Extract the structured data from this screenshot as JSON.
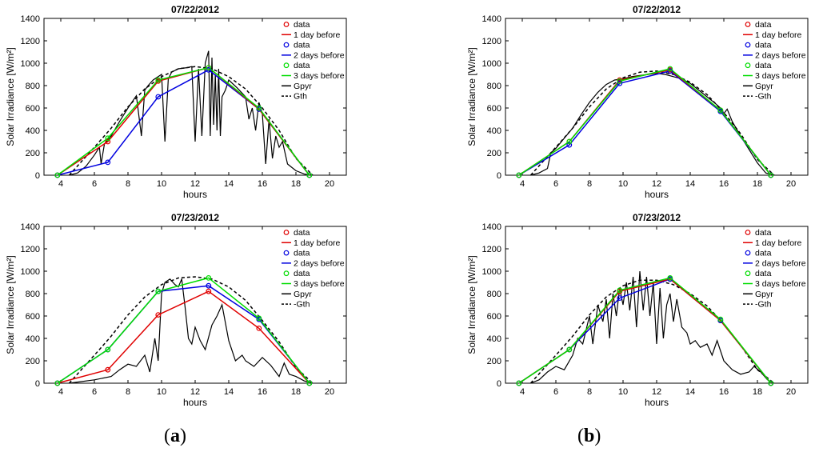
{
  "figure": {
    "label_a": "a",
    "label_b": "b"
  },
  "legend_colors": {
    "1 day before": "#e00000",
    "2 days before": "#0000e0",
    "3 days before": "#00dd00",
    "Gpyr": "#000000",
    "Gth": "#000000"
  },
  "chart_data": [
    {
      "panel": "a-top",
      "type": "line",
      "title": "07/22/2012",
      "xlabel": "hours",
      "ylabel": "Solar Irradiance [W/m²]",
      "xlim": [
        3,
        21
      ],
      "ylim": [
        0,
        1400
      ],
      "xticks": [
        4,
        6,
        8,
        10,
        12,
        14,
        16,
        18,
        20
      ],
      "yticks": [
        0,
        200,
        400,
        600,
        800,
        1000,
        1200,
        1400
      ],
      "legend": [
        "data",
        "1 day before",
        "data",
        "2 days before",
        "data",
        "3 days before",
        "Gpyr",
        "Gth"
      ],
      "legend_position": "top-right",
      "series": [
        {
          "name": "1 day before",
          "color": "#e00000",
          "x": [
            3.8,
            6.8,
            9.8,
            12.8,
            15.8,
            18.8
          ],
          "y": [
            0,
            300,
            840,
            960,
            590,
            0
          ]
        },
        {
          "name": "2 days before",
          "color": "#0000e0",
          "x": [
            3.8,
            6.8,
            9.8,
            12.8,
            15.8,
            18.8
          ],
          "y": [
            0,
            115,
            700,
            940,
            590,
            0
          ]
        },
        {
          "name": "3 days before",
          "color": "#00dd00",
          "x": [
            3.8,
            6.8,
            9.8,
            12.8,
            15.8,
            18.8
          ],
          "y": [
            0,
            330,
            850,
            960,
            600,
            0
          ]
        },
        {
          "name": "Gth",
          "dashed": true,
          "color": "#000000",
          "x": [
            4.5,
            6,
            7,
            8,
            9,
            10,
            11,
            12,
            13,
            14,
            15,
            16,
            17,
            18,
            19
          ],
          "y": [
            0,
            250,
            420,
            610,
            770,
            880,
            950,
            970,
            950,
            880,
            770,
            600,
            400,
            150,
            0
          ]
        },
        {
          "name": "Gpyr",
          "color": "#000000",
          "x": [
            4.5,
            5,
            5.5,
            6,
            6.3,
            6.4,
            6.6,
            7,
            7.5,
            8,
            8.5,
            8.8,
            9,
            9.2,
            9.5,
            9.8,
            10,
            10.2,
            10.4,
            10.6,
            11,
            11.5,
            11.8,
            12,
            12.2,
            12.4,
            12.6,
            12.8,
            12.9,
            13,
            13.1,
            13.2,
            13.3,
            13.4,
            13.5,
            13.6,
            13.8,
            14,
            14.5,
            15,
            15.2,
            15.4,
            15.6,
            15.8,
            16,
            16.2,
            16.4,
            16.6,
            16.8,
            17,
            17.2,
            17.5,
            18,
            18.5,
            19
          ],
          "y": [
            0,
            20,
            80,
            180,
            250,
            100,
            280,
            350,
            480,
            600,
            710,
            350,
            760,
            800,
            850,
            880,
            900,
            300,
            860,
            920,
            950,
            960,
            970,
            300,
            950,
            350,
            1000,
            1110,
            350,
            1050,
            450,
            900,
            400,
            950,
            350,
            700,
            760,
            850,
            780,
            700,
            500,
            600,
            400,
            650,
            550,
            100,
            500,
            150,
            350,
            250,
            300,
            100,
            40,
            10,
            0
          ]
        }
      ]
    },
    {
      "panel": "a-bottom",
      "type": "line",
      "title": "07/23/2012",
      "xlabel": "hours",
      "ylabel": "Solar Irradiance [W/m²]",
      "xlim": [
        3,
        21
      ],
      "ylim": [
        0,
        1400
      ],
      "xticks": [
        4,
        6,
        8,
        10,
        12,
        14,
        16,
        18,
        20
      ],
      "yticks": [
        0,
        200,
        400,
        600,
        800,
        1000,
        1200,
        1400
      ],
      "legend": [
        "data",
        "1 day before",
        "data",
        "2 days before",
        "data",
        "3 days before",
        "Gpyr",
        "-Gth"
      ],
      "legend_position": "top-right",
      "series": [
        {
          "name": "1 day before",
          "color": "#e00000",
          "x": [
            3.8,
            6.8,
            9.8,
            12.8,
            15.8,
            18.8
          ],
          "y": [
            0,
            120,
            610,
            820,
            490,
            0
          ]
        },
        {
          "name": "2 days before",
          "color": "#0000e0",
          "x": [
            3.8,
            6.8,
            9.8,
            12.8,
            15.8,
            18.8
          ],
          "y": [
            0,
            300,
            820,
            870,
            570,
            0
          ]
        },
        {
          "name": "3 days before",
          "color": "#00dd00",
          "x": [
            3.8,
            6.8,
            9.8,
            12.8,
            15.8,
            18.8
          ],
          "y": [
            0,
            300,
            820,
            940,
            580,
            0
          ]
        },
        {
          "name": "Gth",
          "dashed": true,
          "color": "#000000",
          "x": [
            4.5,
            6,
            7,
            8,
            9,
            10,
            11,
            12,
            13,
            14,
            15,
            16,
            17,
            18,
            19
          ],
          "y": [
            0,
            250,
            420,
            610,
            770,
            880,
            940,
            950,
            930,
            860,
            740,
            560,
            370,
            140,
            0
          ]
        },
        {
          "name": "Gpyr",
          "color": "#000000",
          "x": [
            4.5,
            5,
            6,
            7,
            7.5,
            8,
            8.5,
            9,
            9.3,
            9.6,
            9.8,
            10,
            10.2,
            10.5,
            10.8,
            11,
            11.2,
            11.4,
            11.6,
            11.8,
            12,
            12.3,
            12.6,
            13,
            13.3,
            13.6,
            14,
            14.4,
            14.8,
            15,
            15.5,
            16,
            16.5,
            17,
            17.3,
            17.6,
            18,
            18.5,
            19
          ],
          "y": [
            0,
            10,
            30,
            60,
            120,
            170,
            150,
            250,
            100,
            400,
            200,
            800,
            900,
            930,
            880,
            860,
            930,
            680,
            400,
            350,
            500,
            380,
            300,
            520,
            600,
            700,
            380,
            200,
            250,
            200,
            150,
            230,
            160,
            60,
            180,
            80,
            60,
            20,
            0
          ]
        }
      ]
    },
    {
      "panel": "b-top",
      "type": "line",
      "title": "07/22/2012",
      "xlabel": "hours",
      "ylabel": "Solar Irradiance [W/m²]",
      "xlim": [
        3,
        21
      ],
      "ylim": [
        0,
        1400
      ],
      "xticks": [
        4,
        6,
        8,
        10,
        12,
        14,
        16,
        18,
        20
      ],
      "yticks": [
        0,
        200,
        400,
        600,
        800,
        1000,
        1200,
        1400
      ],
      "legend": [
        "data",
        "1 day before",
        "data",
        "2 days before",
        "data",
        "3 days before",
        "Gpyr",
        "-Gth"
      ],
      "legend_position": "top-right",
      "series": [
        {
          "name": "1 day before",
          "color": "#e00000",
          "x": [
            3.8,
            6.8,
            9.8,
            12.8,
            15.8,
            18.8
          ],
          "y": [
            0,
            300,
            850,
            940,
            580,
            0
          ]
        },
        {
          "name": "2 days before",
          "color": "#0000e0",
          "x": [
            3.8,
            6.8,
            9.8,
            12.8,
            15.8,
            18.8
          ],
          "y": [
            0,
            270,
            820,
            930,
            570,
            0
          ]
        },
        {
          "name": "3 days before",
          "color": "#00dd00",
          "x": [
            3.8,
            6.8,
            9.8,
            12.8,
            15.8,
            18.8
          ],
          "y": [
            0,
            300,
            840,
            950,
            580,
            0
          ]
        },
        {
          "name": "Gth",
          "dashed": true,
          "color": "#000000",
          "x": [
            4.5,
            6,
            7,
            8,
            9,
            10,
            11,
            12,
            13,
            14,
            15,
            16,
            17,
            18,
            19
          ],
          "y": [
            0,
            250,
            420,
            610,
            770,
            870,
            920,
            930,
            900,
            830,
            720,
            560,
            370,
            140,
            0
          ]
        },
        {
          "name": "Gpyr",
          "color": "#000000",
          "x": [
            4.5,
            5,
            5.5,
            5.7,
            6,
            6.5,
            7,
            7.5,
            8,
            8.5,
            9,
            9.5,
            10,
            10.5,
            11,
            11.5,
            12,
            12.5,
            13,
            13.5,
            14,
            14.5,
            15,
            15.5,
            15.8,
            16,
            16.2,
            16.5,
            17,
            17.5,
            18,
            18.5,
            19
          ],
          "y": [
            0,
            20,
            60,
            200,
            240,
            330,
            420,
            540,
            650,
            740,
            810,
            850,
            860,
            880,
            890,
            900,
            910,
            900,
            880,
            860,
            820,
            760,
            700,
            640,
            600,
            550,
            590,
            480,
            350,
            230,
            110,
            20,
            0
          ]
        }
      ]
    },
    {
      "panel": "b-bottom",
      "type": "line",
      "title": "07/23/2012",
      "xlabel": "hours",
      "ylabel": "Solar Irradiance [W/m²]",
      "xlim": [
        3,
        21
      ],
      "ylim": [
        0,
        1400
      ],
      "xticks": [
        4,
        6,
        8,
        10,
        12,
        14,
        16,
        18,
        20
      ],
      "yticks": [
        0,
        200,
        400,
        600,
        800,
        1000,
        1200,
        1400
      ],
      "legend": [
        "data",
        "1 day before",
        "data",
        "2 days before",
        "data",
        "3 days before",
        "Gpyr",
        "-Gth"
      ],
      "legend_position": "top-right",
      "series": [
        {
          "name": "1 day before",
          "color": "#e00000",
          "x": [
            3.8,
            6.8,
            9.8,
            12.8,
            15.8,
            18.8
          ],
          "y": [
            0,
            300,
            820,
            930,
            560,
            0
          ]
        },
        {
          "name": "2 days before",
          "color": "#0000e0",
          "x": [
            3.8,
            6.8,
            9.8,
            12.8,
            15.8,
            18.8
          ],
          "y": [
            0,
            300,
            760,
            930,
            560,
            0
          ]
        },
        {
          "name": "3 days before",
          "color": "#00dd00",
          "x": [
            3.8,
            6.8,
            9.8,
            12.8,
            15.8,
            18.8
          ],
          "y": [
            0,
            300,
            830,
            940,
            570,
            0
          ]
        },
        {
          "name": "Gth",
          "dashed": true,
          "color": "#000000",
          "x": [
            4.5,
            6,
            7,
            8,
            9,
            10,
            11,
            12,
            13,
            14,
            15,
            16,
            17,
            18,
            19
          ],
          "y": [
            0,
            250,
            420,
            610,
            770,
            870,
            920,
            920,
            880,
            800,
            690,
            530,
            340,
            120,
            0
          ]
        },
        {
          "name": "Gpyr",
          "color": "#000000",
          "x": [
            4.5,
            5,
            5.5,
            6,
            6.5,
            7,
            7.3,
            7.6,
            8,
            8.2,
            8.5,
            8.8,
            9,
            9.2,
            9.4,
            9.6,
            9.8,
            10,
            10.2,
            10.4,
            10.6,
            10.8,
            11,
            11.2,
            11.4,
            11.6,
            11.8,
            12,
            12.2,
            12.4,
            12.6,
            12.8,
            13,
            13.2,
            13.5,
            13.8,
            14,
            14.3,
            14.6,
            15,
            15.3,
            15.6,
            16,
            16.5,
            17,
            17.5,
            17.8,
            18.2,
            18.6,
            19
          ],
          "y": [
            0,
            30,
            100,
            150,
            120,
            250,
            400,
            350,
            600,
            350,
            700,
            550,
            750,
            400,
            800,
            600,
            850,
            700,
            900,
            650,
            950,
            500,
            1000,
            650,
            950,
            600,
            900,
            350,
            850,
            400,
            700,
            800,
            550,
            750,
            500,
            450,
            350,
            380,
            320,
            350,
            250,
            380,
            200,
            120,
            80,
            100,
            150,
            100,
            30,
            0
          ]
        }
      ]
    }
  ]
}
